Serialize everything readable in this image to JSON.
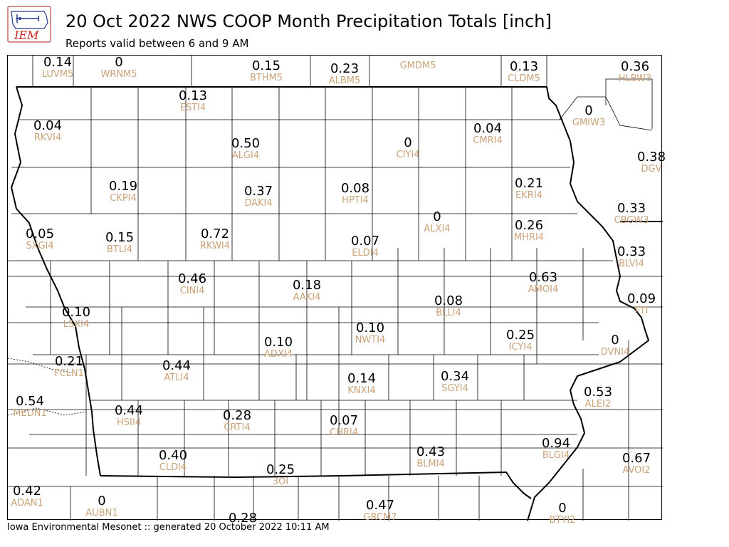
{
  "header": {
    "logo_text": "IEM",
    "title": "20 Oct 2022 NWS COOP Month Precipitation Totals [inch]",
    "subtitle": "Reports valid between 6 and 9 AM"
  },
  "footer": {
    "text": "Iowa Environmental Mesonet :: generated 20 October 2022 10:11 AM"
  },
  "stations": [
    {
      "value": "0.14",
      "id": "LUVM5"
    },
    {
      "value": "0",
      "id": "WRNM5"
    },
    {
      "value": "0.15",
      "id": "BTHM5"
    },
    {
      "value": "0.23",
      "id": "ALBM5"
    },
    {
      "value": "",
      "id": "GMDM5"
    },
    {
      "value": "0.13",
      "id": "CLDM5"
    },
    {
      "value": "0.36",
      "id": "HLBW3"
    },
    {
      "value": "0.13",
      "id": "ESTI4"
    },
    {
      "value": "0.04",
      "id": "RKVI4"
    },
    {
      "value": "0.50",
      "id": "ALGI4"
    },
    {
      "value": "0",
      "id": "CIYI4"
    },
    {
      "value": "0.04",
      "id": "CMRI4"
    },
    {
      "value": "0",
      "id": "GMIW3"
    },
    {
      "value": "0.38",
      "id": "DGV"
    },
    {
      "value": "0.19",
      "id": "CKPI4"
    },
    {
      "value": "0.37",
      "id": "DAKI4"
    },
    {
      "value": "0.08",
      "id": "HPTI4"
    },
    {
      "value": "0.21",
      "id": "EKRI4"
    },
    {
      "value": "0.33",
      "id": "CBGW3"
    },
    {
      "value": "0.05",
      "id": "SXGI4"
    },
    {
      "value": "0.15",
      "id": "BTLI4"
    },
    {
      "value": "0.72",
      "id": "RKWI4"
    },
    {
      "value": "0",
      "id": "ALXI4"
    },
    {
      "value": "0.07",
      "id": "ELDI4"
    },
    {
      "value": "0.26",
      "id": "MHRI4"
    },
    {
      "value": "0.33",
      "id": "BLVI4"
    },
    {
      "value": "0.46",
      "id": "CINI4"
    },
    {
      "value": "0.18",
      "id": "AAKI4"
    },
    {
      "value": "0.08",
      "id": "BLLI4"
    },
    {
      "value": "0.63",
      "id": "AMOI4"
    },
    {
      "value": "0.09",
      "id": "FTI"
    },
    {
      "value": "0.10",
      "id": "LSXI4"
    },
    {
      "value": "0.10",
      "id": "NWTI4"
    },
    {
      "value": "0.25",
      "id": "ICYI4"
    },
    {
      "value": "0",
      "id": "DVNI4"
    },
    {
      "value": "0.10",
      "id": "ADXI4"
    },
    {
      "value": "0.21",
      "id": "FCLN1"
    },
    {
      "value": "0.44",
      "id": "ATLI4"
    },
    {
      "value": "0.14",
      "id": "KNXI4"
    },
    {
      "value": "0.34",
      "id": "SGYI4"
    },
    {
      "value": "0.53",
      "id": "ALEI2"
    },
    {
      "value": "0.54",
      "id": "MEDN1"
    },
    {
      "value": "0.44",
      "id": "HSII4"
    },
    {
      "value": "0.28",
      "id": "CRTI4"
    },
    {
      "value": "0.07",
      "id": "CHRI4"
    },
    {
      "value": "0.43",
      "id": "BLMI4"
    },
    {
      "value": "0.94",
      "id": "BLGI4"
    },
    {
      "value": "0.67",
      "id": "AVOI2"
    },
    {
      "value": "0.40",
      "id": "CLDI4"
    },
    {
      "value": "0.25",
      "id": "3OI"
    },
    {
      "value": "0.42",
      "id": "ADAN1"
    },
    {
      "value": "0",
      "id": "AUBN1"
    },
    {
      "value": "0.28",
      "id": ""
    },
    {
      "value": "0.47",
      "id": "GRCM7"
    },
    {
      "value": "0",
      "id": "BTYI2"
    }
  ]
}
